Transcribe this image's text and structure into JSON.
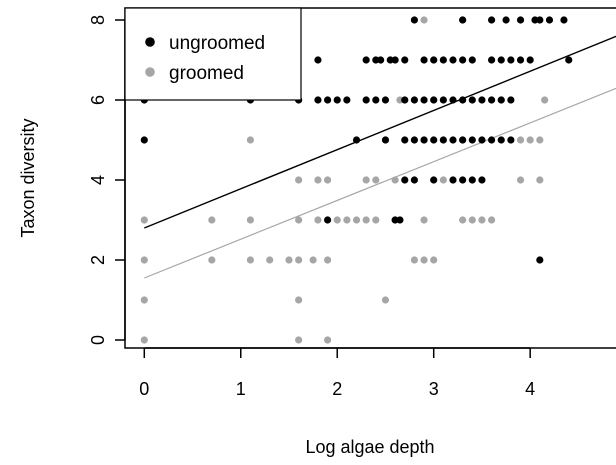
{
  "chart_data": {
    "type": "scatter",
    "xlabel": "Log algae depth",
    "ylabel": "Taxon diversity",
    "xlim": [
      -0.2,
      4.9
    ],
    "ylim": [
      -0.2,
      8.3
    ],
    "x_ticks": [
      0,
      1,
      2,
      3,
      4
    ],
    "y_ticks": [
      0,
      2,
      4,
      6,
      8
    ],
    "legend": {
      "placement": "top-left"
    },
    "colors": {
      "ungroomed": "#000000",
      "groomed": "#a6a6a6"
    },
    "series": [
      {
        "name": "ungroomed",
        "points": [
          [
            0,
            5
          ],
          [
            0,
            6
          ],
          [
            1.1,
            6
          ],
          [
            1.8,
            7
          ],
          [
            1.6,
            6
          ],
          [
            1.8,
            6
          ],
          [
            1.9,
            6
          ],
          [
            2.0,
            6
          ],
          [
            2.1,
            6
          ],
          [
            2.3,
            6
          ],
          [
            2.4,
            6
          ],
          [
            2.5,
            6
          ],
          [
            2.7,
            6
          ],
          [
            2.8,
            6
          ],
          [
            2.9,
            6
          ],
          [
            3.0,
            6
          ],
          [
            3.1,
            6
          ],
          [
            3.2,
            6
          ],
          [
            3.3,
            6
          ],
          [
            3.4,
            6
          ],
          [
            3.5,
            6
          ],
          [
            3.6,
            6
          ],
          [
            3.7,
            6
          ],
          [
            3.8,
            6
          ],
          [
            2.2,
            5
          ],
          [
            2.5,
            5
          ],
          [
            2.7,
            5
          ],
          [
            2.8,
            5
          ],
          [
            2.9,
            5
          ],
          [
            3.0,
            5
          ],
          [
            3.1,
            5
          ],
          [
            3.2,
            5
          ],
          [
            3.3,
            5
          ],
          [
            3.4,
            5
          ],
          [
            3.5,
            5
          ],
          [
            3.6,
            5
          ],
          [
            3.7,
            5
          ],
          [
            3.8,
            5
          ],
          [
            2.7,
            4
          ],
          [
            2.8,
            4
          ],
          [
            3.0,
            4
          ],
          [
            3.2,
            4
          ],
          [
            3.3,
            4
          ],
          [
            3.4,
            4
          ],
          [
            3.5,
            4
          ],
          [
            2.6,
            3
          ],
          [
            2.65,
            3
          ],
          [
            1.9,
            3
          ],
          [
            2.3,
            7
          ],
          [
            2.4,
            7
          ],
          [
            2.45,
            7
          ],
          [
            2.55,
            7
          ],
          [
            2.6,
            7
          ],
          [
            2.7,
            7
          ],
          [
            2.9,
            7
          ],
          [
            3.0,
            7
          ],
          [
            3.1,
            7
          ],
          [
            3.2,
            7
          ],
          [
            3.3,
            7
          ],
          [
            3.4,
            7
          ],
          [
            3.6,
            7
          ],
          [
            3.7,
            7
          ],
          [
            3.8,
            7
          ],
          [
            3.9,
            7
          ],
          [
            4.0,
            7
          ],
          [
            4.4,
            7
          ],
          [
            2.8,
            8
          ],
          [
            3.3,
            8
          ],
          [
            3.6,
            8
          ],
          [
            3.75,
            8
          ],
          [
            3.9,
            8
          ],
          [
            4.05,
            8
          ],
          [
            4.1,
            8
          ],
          [
            4.2,
            8
          ],
          [
            4.35,
            8
          ],
          [
            4.1,
            2
          ]
        ]
      },
      {
        "name": "groomed",
        "points": [
          [
            0,
            6
          ],
          [
            0,
            3
          ],
          [
            0,
            2
          ],
          [
            0,
            1
          ],
          [
            0,
            0
          ],
          [
            0.7,
            3
          ],
          [
            0.7,
            2
          ],
          [
            1.1,
            5
          ],
          [
            1.1,
            3
          ],
          [
            1.1,
            2
          ],
          [
            1.3,
            2
          ],
          [
            1.5,
            2
          ],
          [
            1.6,
            2
          ],
          [
            1.6,
            1
          ],
          [
            1.6,
            0
          ],
          [
            1.6,
            4
          ],
          [
            1.6,
            3
          ],
          [
            1.75,
            2
          ],
          [
            1.8,
            4
          ],
          [
            1.8,
            3
          ],
          [
            1.9,
            4
          ],
          [
            1.9,
            2
          ],
          [
            1.9,
            0
          ],
          [
            2.0,
            3
          ],
          [
            2.1,
            3
          ],
          [
            2.2,
            3
          ],
          [
            2.3,
            3
          ],
          [
            2.3,
            4
          ],
          [
            2.4,
            3
          ],
          [
            2.4,
            4
          ],
          [
            2.5,
            1
          ],
          [
            2.5,
            5
          ],
          [
            2.6,
            3
          ],
          [
            2.6,
            4
          ],
          [
            2.65,
            6
          ],
          [
            2.8,
            2
          ],
          [
            2.9,
            2
          ],
          [
            2.9,
            3
          ],
          [
            3.0,
            2
          ],
          [
            3.1,
            4
          ],
          [
            3.2,
            4
          ],
          [
            3.3,
            3
          ],
          [
            3.4,
            3
          ],
          [
            3.5,
            3
          ],
          [
            3.6,
            3
          ],
          [
            3.0,
            7
          ],
          [
            2.9,
            8
          ],
          [
            3.3,
            8
          ],
          [
            3.7,
            6
          ],
          [
            3.9,
            5
          ],
          [
            3.9,
            4
          ],
          [
            4.0,
            5
          ],
          [
            4.1,
            4
          ],
          [
            4.1,
            5
          ],
          [
            4.15,
            6
          ],
          [
            2.9,
            5
          ],
          [
            3.3,
            5
          ],
          [
            3.0,
            6
          ]
        ]
      }
    ],
    "fit_lines": [
      {
        "name": "ungroomed",
        "x": [
          0,
          4.9
        ],
        "y": [
          2.8,
          7.6
        ]
      },
      {
        "name": "groomed",
        "x": [
          0,
          4.9
        ],
        "y": [
          1.55,
          6.3
        ]
      }
    ]
  }
}
